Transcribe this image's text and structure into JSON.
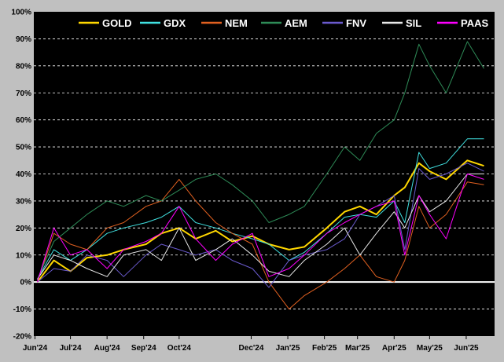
{
  "chart_data": {
    "type": "line",
    "title": "",
    "xlabel": "",
    "ylabel": "",
    "ylim": [
      -20,
      100
    ],
    "y_ticks": [
      "-20%",
      "-10%",
      "0%",
      "10%",
      "20%",
      "30%",
      "40%",
      "50%",
      "60%",
      "70%",
      "80%",
      "90%",
      "100%"
    ],
    "y_tick_values": [
      -20,
      -10,
      0,
      10,
      20,
      30,
      40,
      50,
      60,
      70,
      80,
      90,
      100
    ],
    "x_ticks": [
      "Jun'24",
      "Jul'24",
      "Aug'24",
      "Sep'24",
      "Oct'24",
      "Dec'24",
      "Jan'25",
      "Feb'25",
      "Mar'25",
      "Apr'25",
      "May'25",
      "Jun'25"
    ],
    "x_tick_dates": [
      "2024-06-01",
      "2024-07-01",
      "2024-08-01",
      "2024-09-01",
      "2024-10-01",
      "2024-12-01",
      "2025-01-01",
      "2025-02-01",
      "2025-03-01",
      "2025-04-01",
      "2025-05-01",
      "2025-06-01"
    ],
    "x": [
      "2024-06-03",
      "2024-06-17",
      "2024-07-01",
      "2024-07-15",
      "2024-08-01",
      "2024-08-15",
      "2024-09-03",
      "2024-09-16",
      "2024-10-01",
      "2024-10-15",
      "2024-11-01",
      "2024-11-15",
      "2024-12-02",
      "2024-12-16",
      "2025-01-02",
      "2025-01-15",
      "2025-02-03",
      "2025-02-18",
      "2025-03-03",
      "2025-03-17",
      "2025-04-01",
      "2025-04-10",
      "2025-04-22",
      "2025-05-01",
      "2025-05-15",
      "2025-06-02",
      "2025-06-16"
    ],
    "grid": "horizontal dashed",
    "legend_position": "top",
    "zero_line": true,
    "series": [
      {
        "name": "GOLD",
        "color": "#ffd700",
        "values": [
          0,
          8,
          4,
          9,
          10,
          12,
          14,
          18,
          20,
          16,
          19,
          15,
          17,
          14,
          12,
          13,
          20,
          26,
          28,
          25,
          32,
          35,
          44,
          41,
          38,
          45,
          43
        ]
      },
      {
        "name": "GDX",
        "color": "#40e0e0",
        "values": [
          1,
          12,
          8,
          12,
          18,
          20,
          22,
          24,
          28,
          22,
          20,
          18,
          16,
          14,
          8,
          11,
          18,
          24,
          25,
          24,
          30,
          22,
          48,
          42,
          44,
          53,
          53
        ]
      },
      {
        "name": "NEM",
        "color": "#e06020",
        "values": [
          0,
          18,
          14,
          12,
          20,
          22,
          28,
          30,
          38,
          30,
          22,
          18,
          14,
          0,
          -10,
          -5,
          0,
          5,
          10,
          2,
          0,
          8,
          28,
          20,
          25,
          37,
          36
        ]
      },
      {
        "name": "AEM",
        "color": "#2e8b57",
        "values": [
          1,
          15,
          20,
          25,
          30,
          28,
          32,
          30,
          34,
          38,
          40,
          36,
          30,
          22,
          25,
          28,
          40,
          50,
          45,
          55,
          60,
          70,
          88,
          80,
          70,
          89,
          79
        ]
      },
      {
        "name": "FNV",
        "color": "#6a5acd",
        "values": [
          0,
          5,
          4,
          10,
          8,
          2,
          10,
          14,
          12,
          10,
          12,
          8,
          5,
          -2,
          8,
          10,
          12,
          16,
          25,
          28,
          32,
          12,
          42,
          38,
          40,
          44,
          41
        ]
      },
      {
        "name": "SIL",
        "color": "#e8e8e8",
        "values": [
          1,
          10,
          8,
          5,
          2,
          10,
          12,
          8,
          20,
          8,
          12,
          16,
          10,
          4,
          2,
          8,
          14,
          20,
          10,
          18,
          26,
          20,
          32,
          26,
          30,
          40,
          40
        ]
      },
      {
        "name": "PAAS",
        "color": "#ff00ff",
        "values": [
          0,
          20,
          10,
          12,
          5,
          12,
          15,
          18,
          28,
          16,
          8,
          14,
          18,
          2,
          5,
          10,
          18,
          22,
          25,
          28,
          30,
          10,
          32,
          25,
          16,
          40,
          38
        ]
      }
    ]
  }
}
